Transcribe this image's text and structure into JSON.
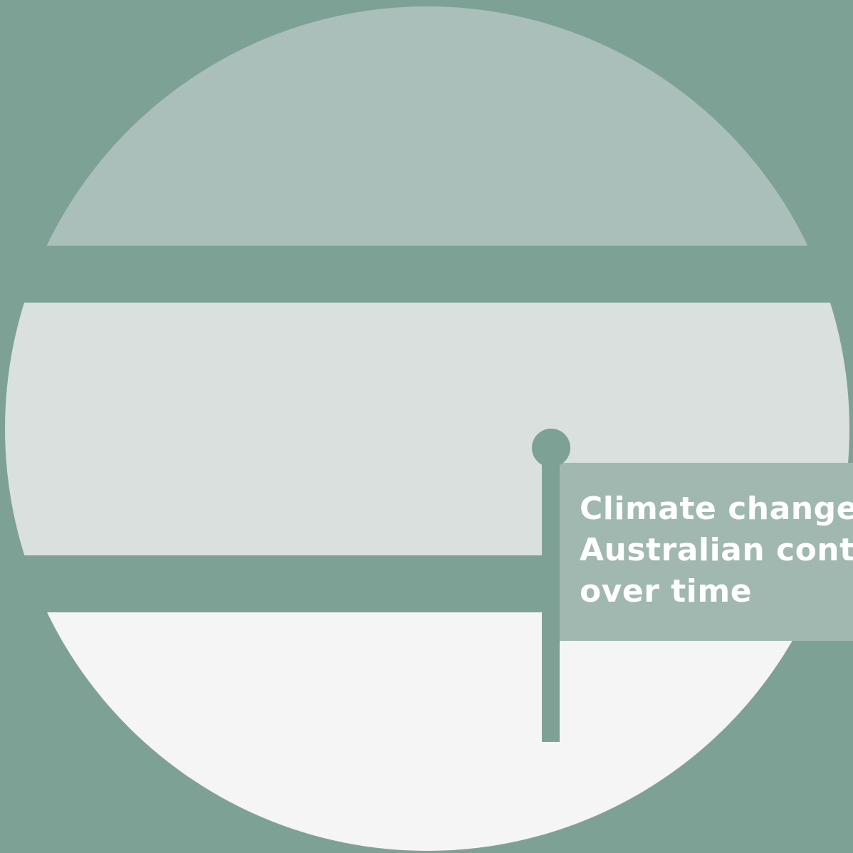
{
  "flag": {
    "title_lines": [
      "Climate change",
      "Australian conte",
      "over time"
    ]
  },
  "colors": {
    "background": "#7ea196",
    "band_top": "#abbfba",
    "band_middle": "#d9e0dd",
    "band_bottom": "#f5f5f5",
    "flag_panel": "#a0b8b0",
    "flag_pole": "#7ea196",
    "title_text": "#ffffff"
  }
}
